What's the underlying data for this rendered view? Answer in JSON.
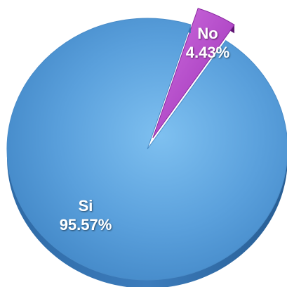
{
  "chart_data": {
    "type": "pie",
    "style": "3d",
    "slices": [
      {
        "label": "No",
        "value": 4.43,
        "value_label": "4.43%",
        "color": "#b040c8",
        "exploded": true
      },
      {
        "label": "Si",
        "value": 95.57,
        "value_label": "95.57%",
        "color": "#5aa0dc",
        "exploded": false
      }
    ]
  }
}
